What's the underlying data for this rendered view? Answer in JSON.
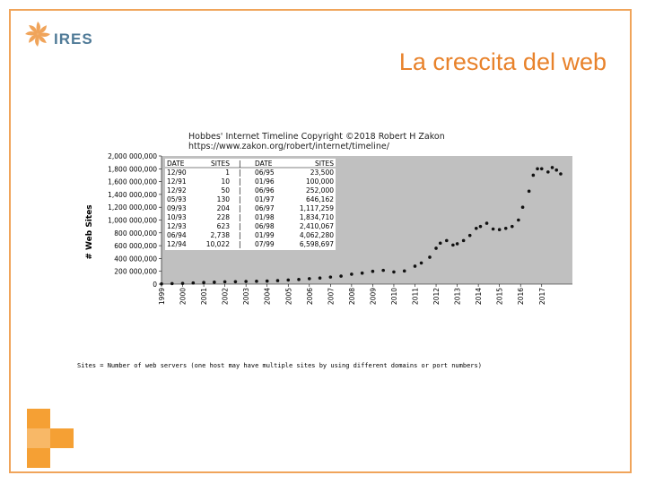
{
  "slide": {
    "title": "La crescita del web",
    "logo_name": "IRES",
    "footnote": "Sites = Number of web servers (one host may have multiple sites by using different domains or port numbers)",
    "accent": "#e8822b",
    "border": "#f0a45a"
  },
  "chart_data": {
    "type": "scatter",
    "title": "Hobbes' Internet Timeline Copyright ©2018 Robert H Zakon",
    "subtitle": "https://www.zakon.org/robert/internet/timeline/",
    "ylabel": "# Web Sites",
    "xlabel": "",
    "ylim": [
      0,
      2000000000
    ],
    "y_ticks": [
      "0",
      "200 000,000",
      "400 000,000",
      "600 000,000",
      "800 000,000",
      "1,000 000,000",
      "1,200 000,000",
      "1,400 000,000",
      "1,600 000,000",
      "1,800 000,000",
      "2,000 000,000"
    ],
    "x_ticks": [
      "1999",
      "2000",
      "2001",
      "2002",
      "2003",
      "2004",
      "2005",
      "2006",
      "2007",
      "2008",
      "2009",
      "2010",
      "2011",
      "2012",
      "2013",
      "2014",
      "2015",
      "2016",
      "2017"
    ],
    "grid": false,
    "series": [
      {
        "values": [
          [
            1999.0,
            4000000
          ],
          [
            1999.5,
            8000000
          ],
          [
            2000.0,
            12000000
          ],
          [
            2000.5,
            18000000
          ],
          [
            2001.0,
            25000000
          ],
          [
            2001.5,
            30000000
          ],
          [
            2002.0,
            36000000
          ],
          [
            2002.5,
            38000000
          ],
          [
            2003.0,
            42000000
          ],
          [
            2003.5,
            44000000
          ],
          [
            2004.0,
            48000000
          ],
          [
            2004.5,
            55000000
          ],
          [
            2005.0,
            64000000
          ],
          [
            2005.5,
            72000000
          ],
          [
            2006.0,
            85000000
          ],
          [
            2006.5,
            95000000
          ],
          [
            2007.0,
            110000000
          ],
          [
            2007.5,
            125000000
          ],
          [
            2008.0,
            155000000
          ],
          [
            2008.5,
            172000000
          ],
          [
            2009.0,
            200000000
          ],
          [
            2009.5,
            215000000
          ],
          [
            2010.0,
            190000000
          ],
          [
            2010.5,
            205000000
          ],
          [
            2011.0,
            280000000
          ],
          [
            2011.3,
            330000000
          ],
          [
            2011.7,
            420000000
          ],
          [
            2012.0,
            560000000
          ],
          [
            2012.2,
            640000000
          ],
          [
            2012.5,
            680000000
          ],
          [
            2012.8,
            610000000
          ],
          [
            2013.0,
            630000000
          ],
          [
            2013.3,
            680000000
          ],
          [
            2013.6,
            760000000
          ],
          [
            2013.9,
            870000000
          ],
          [
            2014.1,
            900000000
          ],
          [
            2014.4,
            950000000
          ],
          [
            2014.7,
            860000000
          ],
          [
            2015.0,
            850000000
          ],
          [
            2015.3,
            870000000
          ],
          [
            2015.6,
            900000000
          ],
          [
            2015.9,
            1000000000
          ],
          [
            2016.1,
            1200000000
          ],
          [
            2016.4,
            1450000000
          ],
          [
            2016.6,
            1700000000
          ],
          [
            2016.8,
            1800000000
          ],
          [
            2017.0,
            1800000000
          ],
          [
            2017.3,
            1750000000
          ],
          [
            2017.5,
            1820000000
          ],
          [
            2017.7,
            1780000000
          ],
          [
            2017.9,
            1720000000
          ]
        ]
      }
    ],
    "table": {
      "headers": [
        "DATE",
        "SITES",
        "DATE",
        "SITES"
      ],
      "rows": [
        [
          "12/90",
          "1",
          "06/95",
          "23,500"
        ],
        [
          "12/91",
          "10",
          "01/96",
          "100,000"
        ],
        [
          "12/92",
          "50",
          "06/96",
          "252,000"
        ],
        [
          "05/93",
          "130",
          "01/97",
          "646,162"
        ],
        [
          "09/93",
          "204",
          "06/97",
          "1,117,259"
        ],
        [
          "10/93",
          "228",
          "01/98",
          "1,834,710"
        ],
        [
          "12/93",
          "623",
          "06/98",
          "2,410,067"
        ],
        [
          "06/94",
          "2,738",
          "01/99",
          "4,062,280"
        ],
        [
          "12/94",
          "10,022",
          "07/99",
          "6,598,697"
        ]
      ]
    }
  }
}
